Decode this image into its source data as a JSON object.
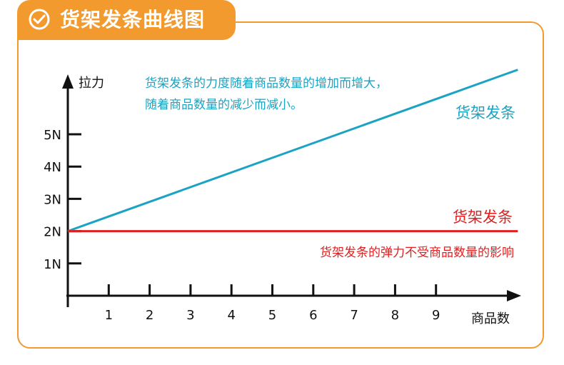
{
  "header": {
    "title": "货架发条曲线图",
    "icon": "check-circle-icon"
  },
  "colors": {
    "accent": "#f29a2e",
    "series_rising": "#1aa3c2",
    "series_flat": "#e02020",
    "axis": "#111111"
  },
  "chart_data": {
    "type": "line",
    "ylabel": "拉力",
    "xlabel": "商品数",
    "x_ticks": [
      1,
      2,
      3,
      4,
      5,
      6,
      7,
      8,
      9
    ],
    "y_ticks": [
      "1N",
      "2N",
      "3N",
      "4N",
      "5N"
    ],
    "y_tick_values": [
      1,
      2,
      3,
      4,
      5
    ],
    "xlim": [
      0,
      11
    ],
    "ylim": [
      0,
      7
    ],
    "series": [
      {
        "name": "货架发条",
        "color": "#1aa3c2",
        "x": [
          0,
          11
        ],
        "y": [
          2,
          7.0
        ]
      },
      {
        "name": "货架发条",
        "color": "#e02020",
        "x": [
          0,
          11
        ],
        "y": [
          2,
          2
        ]
      }
    ],
    "annotations": [
      {
        "lines": [
          "货架发条的力度随着商品数量的增加而增大，",
          "随着商品数量的减少而减小。"
        ],
        "color": "#1aa3c2"
      },
      {
        "lines": [
          "货架发条的弹力不受商品数量的影响"
        ],
        "color": "#e02020"
      }
    ]
  }
}
